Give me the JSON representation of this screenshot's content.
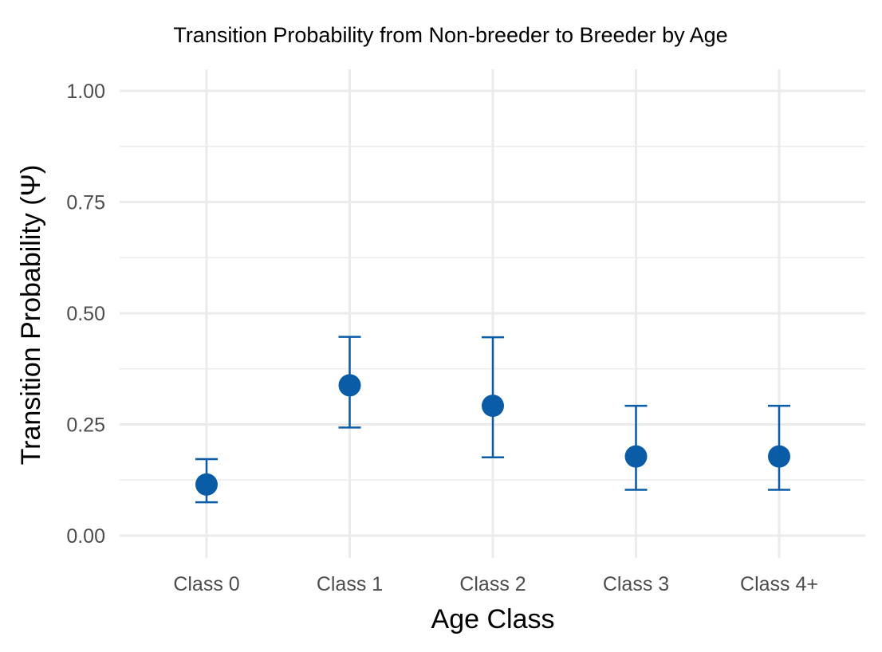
{
  "chart_data": {
    "type": "scatter",
    "title": "Transition Probability from Non-breeder to Breeder by Age",
    "xlabel": "Age Class",
    "ylabel": "Transition Probability (Ψ)",
    "categories": [
      "Class 0",
      "Class 1",
      "Class 2",
      "Class 3",
      "Class 4+"
    ],
    "values": [
      0.115,
      0.338,
      0.292,
      0.178,
      0.178
    ],
    "lower": [
      0.075,
      0.243,
      0.176,
      0.103,
      0.103
    ],
    "upper": [
      0.172,
      0.447,
      0.446,
      0.292,
      0.292
    ],
    "ylim": [
      -0.05,
      1.05
    ],
    "yticks": [
      0,
      0.25,
      0.5,
      0.75,
      1
    ],
    "ytick_labels": [
      "0.00",
      "0.25",
      "0.50",
      "0.75",
      "1.00"
    ],
    "grid": true,
    "colors": {
      "point": "#0a5ca6",
      "grid": "#ebebeb"
    }
  }
}
